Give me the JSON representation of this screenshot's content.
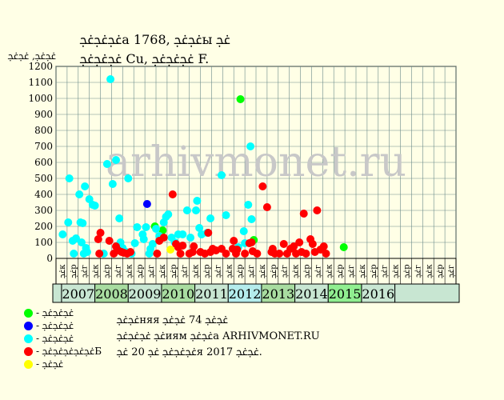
{
  "header": {
    "title_line1": "ﲼﲼﲼа 1768, ﲼﲼы ﲼ",
    "title_line2": "ﲼﲼﲼ Cu, ﲼﲼﲼ F."
  },
  "chart_data": {
    "type": "scatter",
    "ylabel": "ﲼﲼ, ﲼﲼ",
    "ylim": [
      0,
      1200
    ],
    "yticks": [
      0,
      100,
      200,
      300,
      400,
      500,
      600,
      700,
      800,
      900,
      1000,
      1100,
      1200
    ],
    "grid": true,
    "watermark": "arhivmonet.ru",
    "slot_labels": [
      "ﲼк",
      "ﲼр",
      "ﲼг",
      "ﲼк",
      "ﲼр",
      "ﲼг",
      "ﲼк",
      "ﲼр",
      "ﲼг",
      "ﲼк",
      "ﲼр",
      "ﲼг",
      "ﲼк",
      "ﲼр",
      "ﲼг",
      "ﲼк",
      "ﲼр",
      "ﲼг",
      "ﲼк",
      "ﲼр",
      "ﲼг",
      "ﲼк",
      "ﲼр",
      "ﲼг",
      "ﲼк",
      "ﲼр",
      "ﲼг",
      "ﲼк",
      "ﲼр",
      "ﲼг",
      "ﲼк",
      "ﲼр",
      "ﲼг",
      "ﲼк",
      "ﲼр",
      "ﲼг"
    ],
    "years": [
      {
        "label": "2007",
        "color": "#c8e6d2"
      },
      {
        "label": "2008",
        "color": "#a8dca0"
      },
      {
        "label": "2009",
        "color": "#c8e6d2"
      },
      {
        "label": "2010",
        "color": "#a8dca0"
      },
      {
        "label": "2011",
        "color": "#c8e6d2"
      },
      {
        "label": "2012",
        "color": "#b4ecec"
      },
      {
        "label": "2013",
        "color": "#a8dca0"
      },
      {
        "label": "2014",
        "color": "#c8e6d2"
      },
      {
        "label": "2015",
        "color": "#90ee90"
      },
      {
        "label": "2016",
        "color": "#c8e6d2"
      }
    ],
    "series": [
      {
        "color": "#00ff00",
        "points": [
          [
            8.4,
            200
          ],
          [
            9.1,
            175
          ],
          [
            16.1,
            995
          ],
          [
            17.3,
            115
          ],
          [
            25.4,
            70
          ]
        ]
      },
      {
        "color": "#0000ff",
        "points": [
          [
            7.7,
            340
          ]
        ]
      },
      {
        "color": "#00ffff",
        "points": [
          [
            0.1,
            150
          ],
          [
            0.6,
            225
          ],
          [
            0.7,
            500
          ],
          [
            1.0,
            110
          ],
          [
            1.1,
            30
          ],
          [
            1.3,
            125
          ],
          [
            1.6,
            400
          ],
          [
            1.7,
            225
          ],
          [
            1.8,
            100
          ],
          [
            1.9,
            220
          ],
          [
            2.0,
            30
          ],
          [
            2.1,
            450
          ],
          [
            2.2,
            65
          ],
          [
            2.3,
            40
          ],
          [
            2.5,
            370
          ],
          [
            2.8,
            335
          ],
          [
            3.0,
            330
          ],
          [
            3.8,
            30
          ],
          [
            4.1,
            590
          ],
          [
            4.4,
            1120
          ],
          [
            4.6,
            465
          ],
          [
            4.9,
            615
          ],
          [
            5.2,
            250
          ],
          [
            5.3,
            100
          ],
          [
            5.5,
            65
          ],
          [
            5.8,
            40
          ],
          [
            6.0,
            500
          ],
          [
            6.3,
            30
          ],
          [
            6.6,
            95
          ],
          [
            6.8,
            195
          ],
          [
            7.3,
            150
          ],
          [
            7.4,
            120
          ],
          [
            7.6,
            195
          ],
          [
            7.9,
            30
          ],
          [
            8.0,
            60
          ],
          [
            8.2,
            90
          ],
          [
            8.5,
            185
          ],
          [
            8.8,
            140
          ],
          [
            9.2,
            225
          ],
          [
            9.4,
            260
          ],
          [
            9.6,
            275
          ],
          [
            9.9,
            130
          ],
          [
            10.2,
            100
          ],
          [
            10.5,
            150
          ],
          [
            10.9,
            150
          ],
          [
            11.3,
            300
          ],
          [
            11.6,
            130
          ],
          [
            12.2,
            360
          ],
          [
            12.1,
            300
          ],
          [
            12.4,
            190
          ],
          [
            12.6,
            150
          ],
          [
            13.1,
            160
          ],
          [
            13.4,
            250
          ],
          [
            14.4,
            520
          ],
          [
            14.8,
            270
          ],
          [
            15.9,
            70
          ],
          [
            16.4,
            170
          ],
          [
            16.8,
            335
          ],
          [
            17.0,
            700
          ],
          [
            17.1,
            245
          ],
          [
            16.5,
            95
          ]
        ]
      },
      {
        "color": "#ff0000",
        "points": [
          [
            3.3,
            120
          ],
          [
            3.4,
            30
          ],
          [
            3.5,
            160
          ],
          [
            4.3,
            110
          ],
          [
            4.7,
            30
          ],
          [
            4.9,
            75
          ],
          [
            5.1,
            50
          ],
          [
            5.4,
            40
          ],
          [
            5.6,
            35
          ],
          [
            5.9,
            30
          ],
          [
            6.2,
            40
          ],
          [
            8.6,
            30
          ],
          [
            8.8,
            110
          ],
          [
            9.2,
            130
          ],
          [
            10.0,
            400
          ],
          [
            10.3,
            90
          ],
          [
            10.5,
            70
          ],
          [
            10.7,
            30
          ],
          [
            10.9,
            80
          ],
          [
            11.5,
            30
          ],
          [
            11.8,
            40
          ],
          [
            11.9,
            75
          ],
          [
            12.5,
            40
          ],
          [
            12.9,
            30
          ],
          [
            13.2,
            160
          ],
          [
            13.4,
            40
          ],
          [
            13.6,
            60
          ],
          [
            13.9,
            50
          ],
          [
            14.4,
            60
          ],
          [
            14.8,
            30
          ],
          [
            15.4,
            60
          ],
          [
            15.5,
            110
          ],
          [
            15.7,
            30
          ],
          [
            15.8,
            55
          ],
          [
            16.5,
            30
          ],
          [
            16.9,
            95
          ],
          [
            17.1,
            100
          ],
          [
            17.2,
            45
          ],
          [
            17.6,
            30
          ],
          [
            18.1,
            450
          ],
          [
            18.5,
            320
          ],
          [
            18.9,
            40
          ],
          [
            19.2,
            30
          ],
          [
            19.6,
            30
          ],
          [
            20.0,
            90
          ],
          [
            20.3,
            30
          ],
          [
            20.6,
            60
          ],
          [
            20.9,
            75
          ],
          [
            21.1,
            30
          ],
          [
            21.4,
            100
          ],
          [
            21.6,
            40
          ],
          [
            21.8,
            280
          ],
          [
            22.0,
            30
          ],
          [
            22.4,
            120
          ],
          [
            22.6,
            90
          ],
          [
            22.8,
            40
          ],
          [
            23.0,
            300
          ],
          [
            23.3,
            55
          ],
          [
            23.6,
            75
          ],
          [
            23.8,
            30
          ],
          [
            19.0,
            60
          ]
        ]
      },
      {
        "color": "#ffff00",
        "points": [
          [
            9.8,
            55
          ]
        ]
      }
    ]
  },
  "legend": [
    {
      "color": "#00ff00",
      "label": "- ﲼﲼﲼ"
    },
    {
      "color": "#0000ff",
      "label": "- ﲼﲼﲼ"
    },
    {
      "color": "#00ffff",
      "label": "- ﲼﲼﲼ"
    },
    {
      "color": "#ff0000",
      "label": "- ﲼﲼﲼﲼﲼБ"
    },
    {
      "color": "#ffff00",
      "label": "- ﲼﲼ"
    }
  ],
  "notes": {
    "line1": "ﲼﲼняя ﲼﲼ 74 ﲼﲼ",
    "line2": "ﲼ ﲼﲼﲼиям ﲼﲼа ARHIVMONET.RU",
    "line3": "ﲼﲼﲼ ﲼ 20 ﲼя 2017 ﲼﲼ."
  }
}
